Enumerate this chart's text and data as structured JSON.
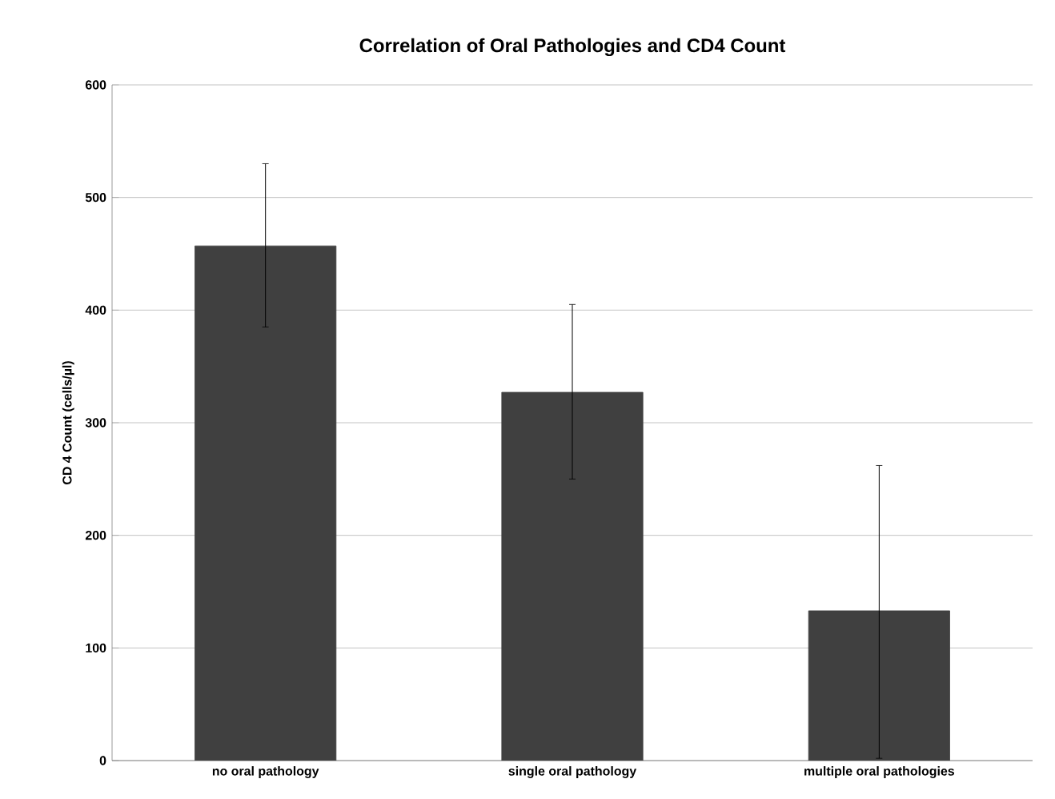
{
  "chart_data": {
    "type": "bar",
    "title": "Correlation of Oral Pathologies and CD4 Count",
    "ylabel": "CD 4 Count (cells/µl)",
    "categories": [
      "no oral pathology",
      "single oral pathology",
      "multiple oral pathologies"
    ],
    "values": [
      457,
      327,
      133
    ],
    "color": "#404040",
    "errors": [
      [
        385,
        530
      ],
      [
        250,
        405
      ],
      [
        2,
        262
      ]
    ],
    "ylim": [
      0,
      600
    ],
    "yticks": [
      0,
      100,
      200,
      300,
      400,
      500,
      600
    ],
    "grid": "y"
  }
}
